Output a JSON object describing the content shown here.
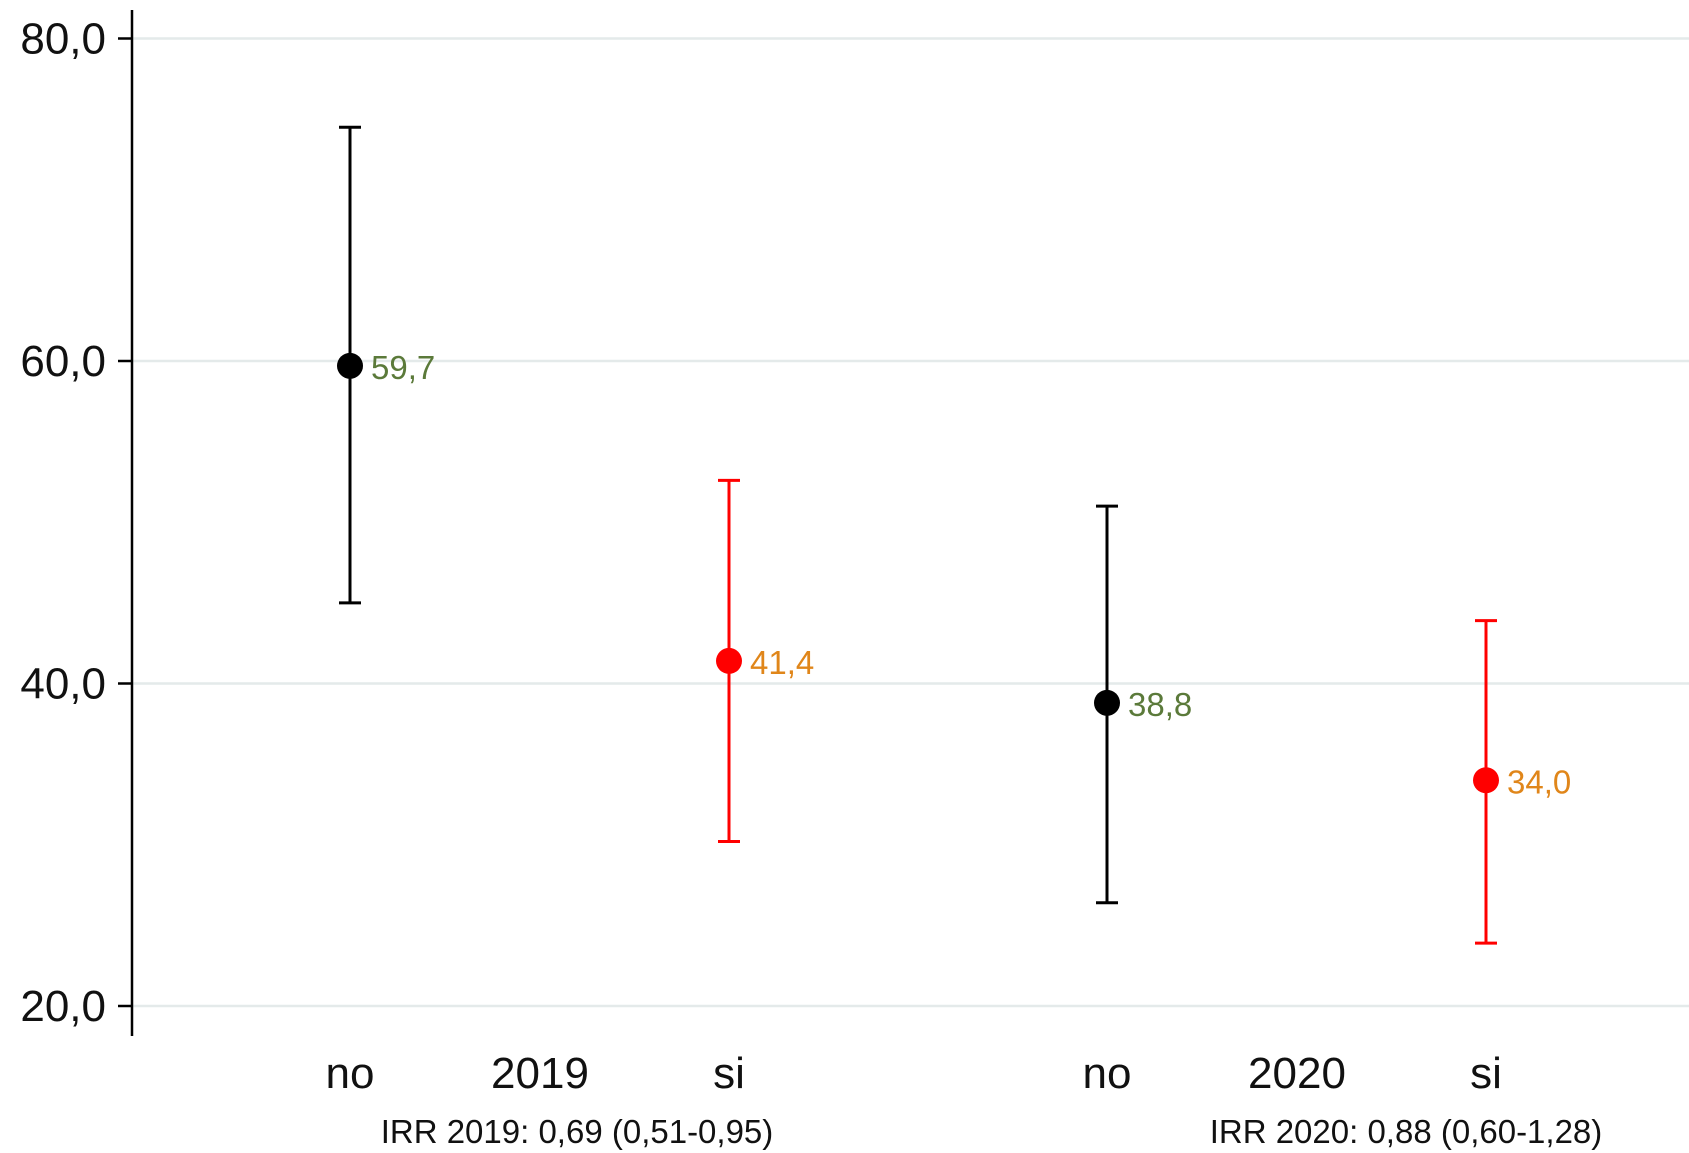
{
  "chart_data": {
    "type": "scatter",
    "ylim": [
      18.0,
      82.0
    ],
    "yticks": [
      {
        "value": 20,
        "label": "20,0"
      },
      {
        "value": 40,
        "label": "40,0"
      },
      {
        "value": 60,
        "label": "60,0"
      },
      {
        "value": 80,
        "label": "80,0"
      }
    ],
    "grid": true,
    "colors": {
      "no": "#000000",
      "si": "#ff0000",
      "label_no": "#5b7a3a",
      "label_si": "#e0861a",
      "grid": "#e4eaea"
    },
    "groups": [
      {
        "label": "2019",
        "note": "IRR 2019: 0,69 (0,51-0,95)",
        "points": [
          {
            "category": "no",
            "value": 59.7,
            "label": "59,7",
            "ci_low": 45.0,
            "ci_high": 74.5
          },
          {
            "category": "si",
            "value": 41.4,
            "label": "41,4",
            "ci_low": 30.2,
            "ci_high": 52.6
          }
        ]
      },
      {
        "label": "2020",
        "note": "IRR 2020: 0,88 (0,60-1,28)",
        "points": [
          {
            "category": "no",
            "value": 38.8,
            "label": "38,8",
            "ci_low": 26.4,
            "ci_high": 51.0
          },
          {
            "category": "si",
            "value": 34.0,
            "label": "34,0",
            "ci_low": 23.9,
            "ci_high": 43.9
          }
        ]
      }
    ]
  }
}
